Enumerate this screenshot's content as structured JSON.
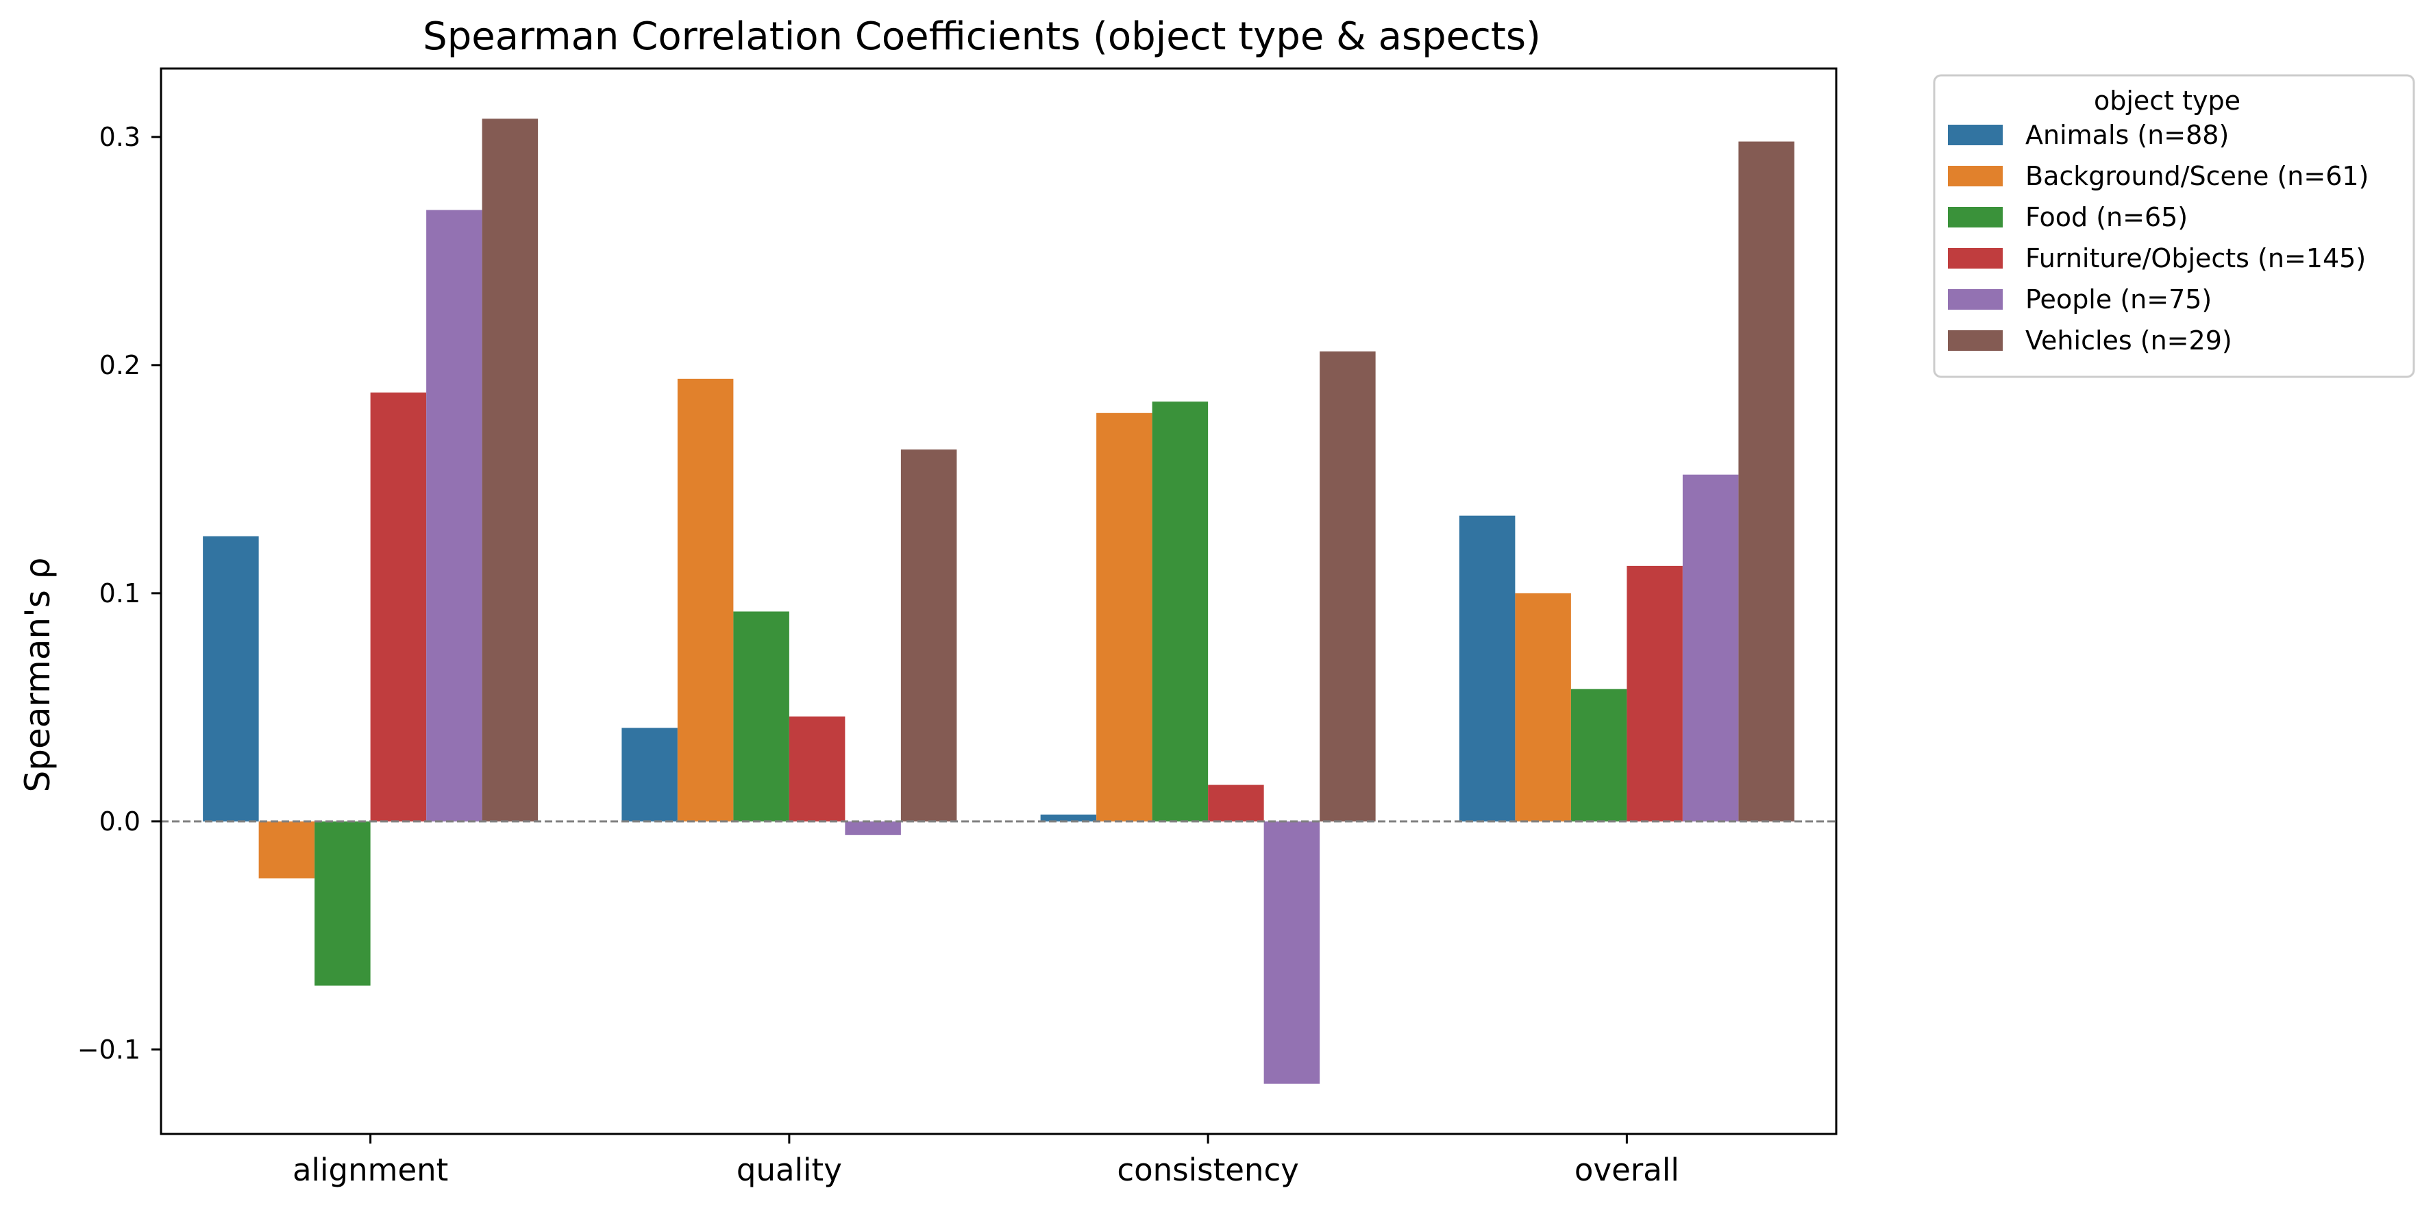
{
  "chart_data": {
    "type": "bar",
    "title": "Spearman Correlation Coefficients (object type & aspects)",
    "xlabel": "",
    "ylabel": "Spearman's ρ",
    "categories": [
      "alignment",
      "quality",
      "consistency",
      "overall"
    ],
    "ylim": [
      -0.137,
      0.33
    ],
    "yticks": [
      -0.1,
      0.0,
      0.1,
      0.2,
      0.3
    ],
    "ytick_labels": [
      "−0.1",
      "0.0",
      "0.1",
      "0.2",
      "0.3"
    ],
    "zero_line": {
      "value": 0,
      "style": "dashed",
      "color": "#808080"
    },
    "grid": false,
    "legend": {
      "title": "object type",
      "placement": "outside-top-right"
    },
    "series": [
      {
        "name": "Animals (n=88)",
        "color": "#3274a1",
        "values": [
          0.125,
          0.041,
          0.003,
          0.134
        ]
      },
      {
        "name": "Background/Scene (n=61)",
        "color": "#e1812c",
        "values": [
          -0.025,
          0.194,
          0.179,
          0.1
        ]
      },
      {
        "name": "Food (n=65)",
        "color": "#3a923a",
        "values": [
          -0.072,
          0.092,
          0.184,
          0.058
        ]
      },
      {
        "name": "Furniture/Objects (n=145)",
        "color": "#c03d3e",
        "values": [
          0.188,
          0.046,
          0.016,
          0.112
        ]
      },
      {
        "name": "People (n=75)",
        "color": "#9372b2",
        "values": [
          0.268,
          -0.006,
          -0.115,
          0.152
        ]
      },
      {
        "name": "Vehicles (n=29)",
        "color": "#845b53",
        "values": [
          0.308,
          0.163,
          0.206,
          0.298
        ]
      }
    ]
  }
}
